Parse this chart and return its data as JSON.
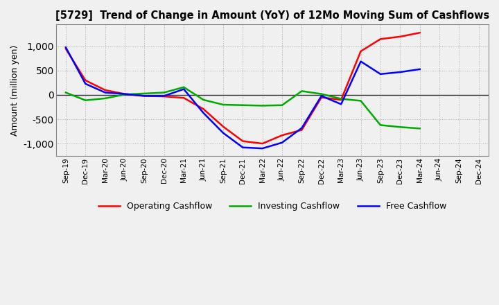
{
  "title": "[5729]  Trend of Change in Amount (YoY) of 12Mo Moving Sum of Cashflows",
  "ylabel": "Amount (million yen)",
  "x_labels": [
    "Sep-19",
    "Dec-19",
    "Mar-20",
    "Jun-20",
    "Sep-20",
    "Dec-20",
    "Mar-21",
    "Jun-21",
    "Sep-21",
    "Dec-21",
    "Mar-22",
    "Jun-22",
    "Sep-22",
    "Dec-22",
    "Mar-23",
    "Jun-23",
    "Sep-23",
    "Dec-23",
    "Mar-24",
    "Jun-24",
    "Sep-24",
    "Dec-24"
  ],
  "operating": [
    950,
    300,
    100,
    20,
    -20,
    -30,
    -60,
    -290,
    -650,
    -950,
    -1000,
    -830,
    -720,
    -50,
    -100,
    900,
    1150,
    1200,
    1280,
    null,
    null,
    null
  ],
  "investing": [
    50,
    -110,
    -70,
    10,
    30,
    50,
    160,
    -100,
    -200,
    -210,
    -220,
    -210,
    80,
    20,
    -80,
    -120,
    -620,
    -660,
    -690,
    null,
    null,
    null
  ],
  "free": [
    980,
    230,
    50,
    20,
    -20,
    -20,
    120,
    -370,
    -780,
    -1080,
    -1100,
    -980,
    -680,
    -20,
    -190,
    690,
    430,
    470,
    530,
    null,
    null,
    null
  ],
  "ylim": [
    -1250,
    1450
  ],
  "yticks": [
    -1000,
    -500,
    0,
    500,
    1000
  ],
  "operating_color": "#ff0000",
  "investing_color": "#00aa00",
  "free_color": "#0000ff",
  "line_width": 1.8,
  "background_color": "#f0f0f0",
  "plot_bg_color": "#f0f0f0",
  "grid_color": "#aaaaaa",
  "zero_line_color": "#333333",
  "border_color": "#888888"
}
